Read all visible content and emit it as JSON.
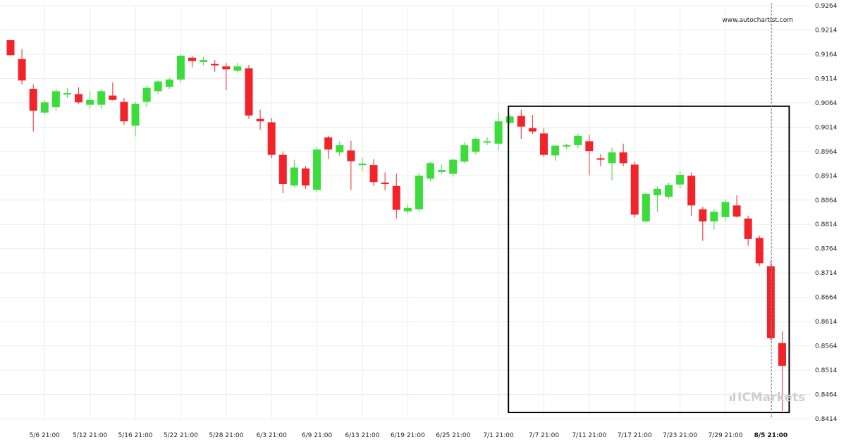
{
  "watermark": "www.autochartist.com",
  "logo": {
    "brand": "ICMarkets",
    "prefix": "IC",
    "suffix": "Markets"
  },
  "colors": {
    "up": "#3ddc3d",
    "down": "#f2242a",
    "grid": "#ececec",
    "box": "#000000",
    "vline": "#888888"
  },
  "chart_data": {
    "type": "candlestick",
    "title": "",
    "xlabel": "",
    "ylabel": "",
    "ylim": [
      0.8414,
      0.9264
    ],
    "y_ticks": [
      "0.9264",
      "0.9214",
      "0.9164",
      "0.9114",
      "0.9064",
      "0.9014",
      "0.8964",
      "0.8914",
      "0.8864",
      "0.8814",
      "0.8764",
      "0.8714",
      "0.8664",
      "0.8614",
      "0.8564",
      "0.8514",
      "0.8464",
      "0.8414"
    ],
    "x_ticks": [
      {
        "label": "5/6 21:00",
        "index": 3
      },
      {
        "label": "5/12 21:00",
        "index": 7
      },
      {
        "label": "5/16 21:00",
        "index": 11
      },
      {
        "label": "5/22 21:00",
        "index": 15
      },
      {
        "label": "5/28 21:00",
        "index": 19
      },
      {
        "label": "6/3 21:00",
        "index": 23
      },
      {
        "label": "6/9 21:00",
        "index": 27
      },
      {
        "label": "6/13 21:00",
        "index": 31
      },
      {
        "label": "6/19 21:00",
        "index": 35
      },
      {
        "label": "6/25 21:00",
        "index": 39
      },
      {
        "label": "7/1 21:00",
        "index": 43
      },
      {
        "label": "7/7 21:00",
        "index": 47
      },
      {
        "label": "7/11 21:00",
        "index": 51
      },
      {
        "label": "7/17 21:00",
        "index": 55
      },
      {
        "label": "7/23 21:00",
        "index": 59
      },
      {
        "label": "7/29 21:00",
        "index": 63
      },
      {
        "label": "8/5 21:00",
        "index": 67,
        "bold": true
      }
    ],
    "candles": [
      {
        "o": 0.9193,
        "h": 0.9193,
        "l": 0.9162,
        "c": 0.9162
      },
      {
        "o": 0.9154,
        "h": 0.9175,
        "l": 0.9102,
        "c": 0.911
      },
      {
        "o": 0.9093,
        "h": 0.9102,
        "l": 0.9005,
        "c": 0.9048
      },
      {
        "o": 0.9044,
        "h": 0.907,
        "l": 0.904,
        "c": 0.9065
      },
      {
        "o": 0.9055,
        "h": 0.9093,
        "l": 0.9048,
        "c": 0.9088
      },
      {
        "o": 0.9082,
        "h": 0.9095,
        "l": 0.9074,
        "c": 0.9084
      },
      {
        "o": 0.9082,
        "h": 0.9096,
        "l": 0.9062,
        "c": 0.9065
      },
      {
        "o": 0.906,
        "h": 0.9088,
        "l": 0.9052,
        "c": 0.907
      },
      {
        "o": 0.906,
        "h": 0.9093,
        "l": 0.9052,
        "c": 0.9088
      },
      {
        "o": 0.9079,
        "h": 0.9106,
        "l": 0.9069,
        "c": 0.907
      },
      {
        "o": 0.9066,
        "h": 0.9074,
        "l": 0.9019,
        "c": 0.9026
      },
      {
        "o": 0.9017,
        "h": 0.9066,
        "l": 0.8995,
        "c": 0.9062
      },
      {
        "o": 0.9066,
        "h": 0.91,
        "l": 0.9055,
        "c": 0.9095
      },
      {
        "o": 0.9088,
        "h": 0.911,
        "l": 0.9082,
        "c": 0.9108
      },
      {
        "o": 0.9097,
        "h": 0.9115,
        "l": 0.9093,
        "c": 0.9112
      },
      {
        "o": 0.9112,
        "h": 0.9164,
        "l": 0.9106,
        "c": 0.9161
      },
      {
        "o": 0.9157,
        "h": 0.9161,
        "l": 0.9137,
        "c": 0.915
      },
      {
        "o": 0.9148,
        "h": 0.9159,
        "l": 0.9141,
        "c": 0.9152
      },
      {
        "o": 0.9144,
        "h": 0.9152,
        "l": 0.9128,
        "c": 0.9143
      },
      {
        "o": 0.9139,
        "h": 0.9146,
        "l": 0.909,
        "c": 0.9133
      },
      {
        "o": 0.913,
        "h": 0.9146,
        "l": 0.9126,
        "c": 0.9139
      },
      {
        "o": 0.9135,
        "h": 0.9142,
        "l": 0.9031,
        "c": 0.9038
      },
      {
        "o": 0.9031,
        "h": 0.905,
        "l": 0.9009,
        "c": 0.9026
      },
      {
        "o": 0.9024,
        "h": 0.9033,
        "l": 0.895,
        "c": 0.8957
      },
      {
        "o": 0.8957,
        "h": 0.8964,
        "l": 0.8878,
        "c": 0.8897
      },
      {
        "o": 0.8894,
        "h": 0.8947,
        "l": 0.889,
        "c": 0.8931
      },
      {
        "o": 0.8929,
        "h": 0.8934,
        "l": 0.8887,
        "c": 0.8894
      },
      {
        "o": 0.8885,
        "h": 0.8973,
        "l": 0.888,
        "c": 0.8968
      },
      {
        "o": 0.8993,
        "h": 0.8996,
        "l": 0.8948,
        "c": 0.8968
      },
      {
        "o": 0.8962,
        "h": 0.8985,
        "l": 0.8955,
        "c": 0.8977
      },
      {
        "o": 0.8966,
        "h": 0.8986,
        "l": 0.8885,
        "c": 0.8944
      },
      {
        "o": 0.8939,
        "h": 0.8951,
        "l": 0.8923,
        "c": 0.8939
      },
      {
        "o": 0.8936,
        "h": 0.8948,
        "l": 0.8893,
        "c": 0.8901
      },
      {
        "o": 0.89,
        "h": 0.8921,
        "l": 0.8884,
        "c": 0.8897
      },
      {
        "o": 0.8893,
        "h": 0.8918,
        "l": 0.8826,
        "c": 0.8844
      },
      {
        "o": 0.8841,
        "h": 0.8854,
        "l": 0.8836,
        "c": 0.8848
      },
      {
        "o": 0.8845,
        "h": 0.892,
        "l": 0.884,
        "c": 0.8914
      },
      {
        "o": 0.8908,
        "h": 0.8942,
        "l": 0.8903,
        "c": 0.894
      },
      {
        "o": 0.8922,
        "h": 0.8937,
        "l": 0.8917,
        "c": 0.8926
      },
      {
        "o": 0.8918,
        "h": 0.8949,
        "l": 0.8912,
        "c": 0.8947
      },
      {
        "o": 0.8943,
        "h": 0.8983,
        "l": 0.894,
        "c": 0.8977
      },
      {
        "o": 0.8963,
        "h": 0.8993,
        "l": 0.8957,
        "c": 0.899
      },
      {
        "o": 0.8985,
        "h": 0.8993,
        "l": 0.8977,
        "c": 0.8985
      },
      {
        "o": 0.898,
        "h": 0.9044,
        "l": 0.8966,
        "c": 0.9026
      },
      {
        "o": 0.9023,
        "h": 0.904,
        "l": 0.902,
        "c": 0.9036
      },
      {
        "o": 0.9037,
        "h": 0.905,
        "l": 0.899,
        "c": 0.9015
      },
      {
        "o": 0.9012,
        "h": 0.9039,
        "l": 0.9,
        "c": 0.9005
      },
      {
        "o": 0.9001,
        "h": 0.9012,
        "l": 0.8952,
        "c": 0.8957
      },
      {
        "o": 0.8956,
        "h": 0.8974,
        "l": 0.8945,
        "c": 0.8976
      },
      {
        "o": 0.8976,
        "h": 0.898,
        "l": 0.8969,
        "c": 0.8977
      },
      {
        "o": 0.8977,
        "h": 0.9001,
        "l": 0.897,
        "c": 0.8996
      },
      {
        "o": 0.8985,
        "h": 0.8998,
        "l": 0.8915,
        "c": 0.8965
      },
      {
        "o": 0.895,
        "h": 0.8958,
        "l": 0.8934,
        "c": 0.8947
      },
      {
        "o": 0.894,
        "h": 0.8972,
        "l": 0.8904,
        "c": 0.8962
      },
      {
        "o": 0.8962,
        "h": 0.898,
        "l": 0.8934,
        "c": 0.894
      },
      {
        "o": 0.8937,
        "h": 0.8943,
        "l": 0.8828,
        "c": 0.8834
      },
      {
        "o": 0.882,
        "h": 0.888,
        "l": 0.8818,
        "c": 0.8877
      },
      {
        "o": 0.8874,
        "h": 0.8892,
        "l": 0.884,
        "c": 0.8887
      },
      {
        "o": 0.8871,
        "h": 0.89,
        "l": 0.8867,
        "c": 0.8895
      },
      {
        "o": 0.8896,
        "h": 0.8924,
        "l": 0.8888,
        "c": 0.8916
      },
      {
        "o": 0.8914,
        "h": 0.8921,
        "l": 0.8831,
        "c": 0.8853
      },
      {
        "o": 0.8845,
        "h": 0.885,
        "l": 0.878,
        "c": 0.882
      },
      {
        "o": 0.882,
        "h": 0.8845,
        "l": 0.8803,
        "c": 0.884
      },
      {
        "o": 0.8829,
        "h": 0.8866,
        "l": 0.882,
        "c": 0.886
      },
      {
        "o": 0.8853,
        "h": 0.8874,
        "l": 0.8828,
        "c": 0.883
      },
      {
        "o": 0.8826,
        "h": 0.8832,
        "l": 0.877,
        "c": 0.8784
      },
      {
        "o": 0.8786,
        "h": 0.879,
        "l": 0.8728,
        "c": 0.8734
      },
      {
        "o": 0.8728,
        "h": 0.8738,
        "l": 0.8575,
        "c": 0.858
      },
      {
        "o": 0.857,
        "h": 0.8594,
        "l": 0.843,
        "c": 0.8523
      }
    ],
    "highlight_box": {
      "from_index": 44,
      "to_index": 68,
      "y_top": 0.9057,
      "y_bottom": 0.8427
    },
    "vertical_line_index": 67,
    "grid": true
  }
}
